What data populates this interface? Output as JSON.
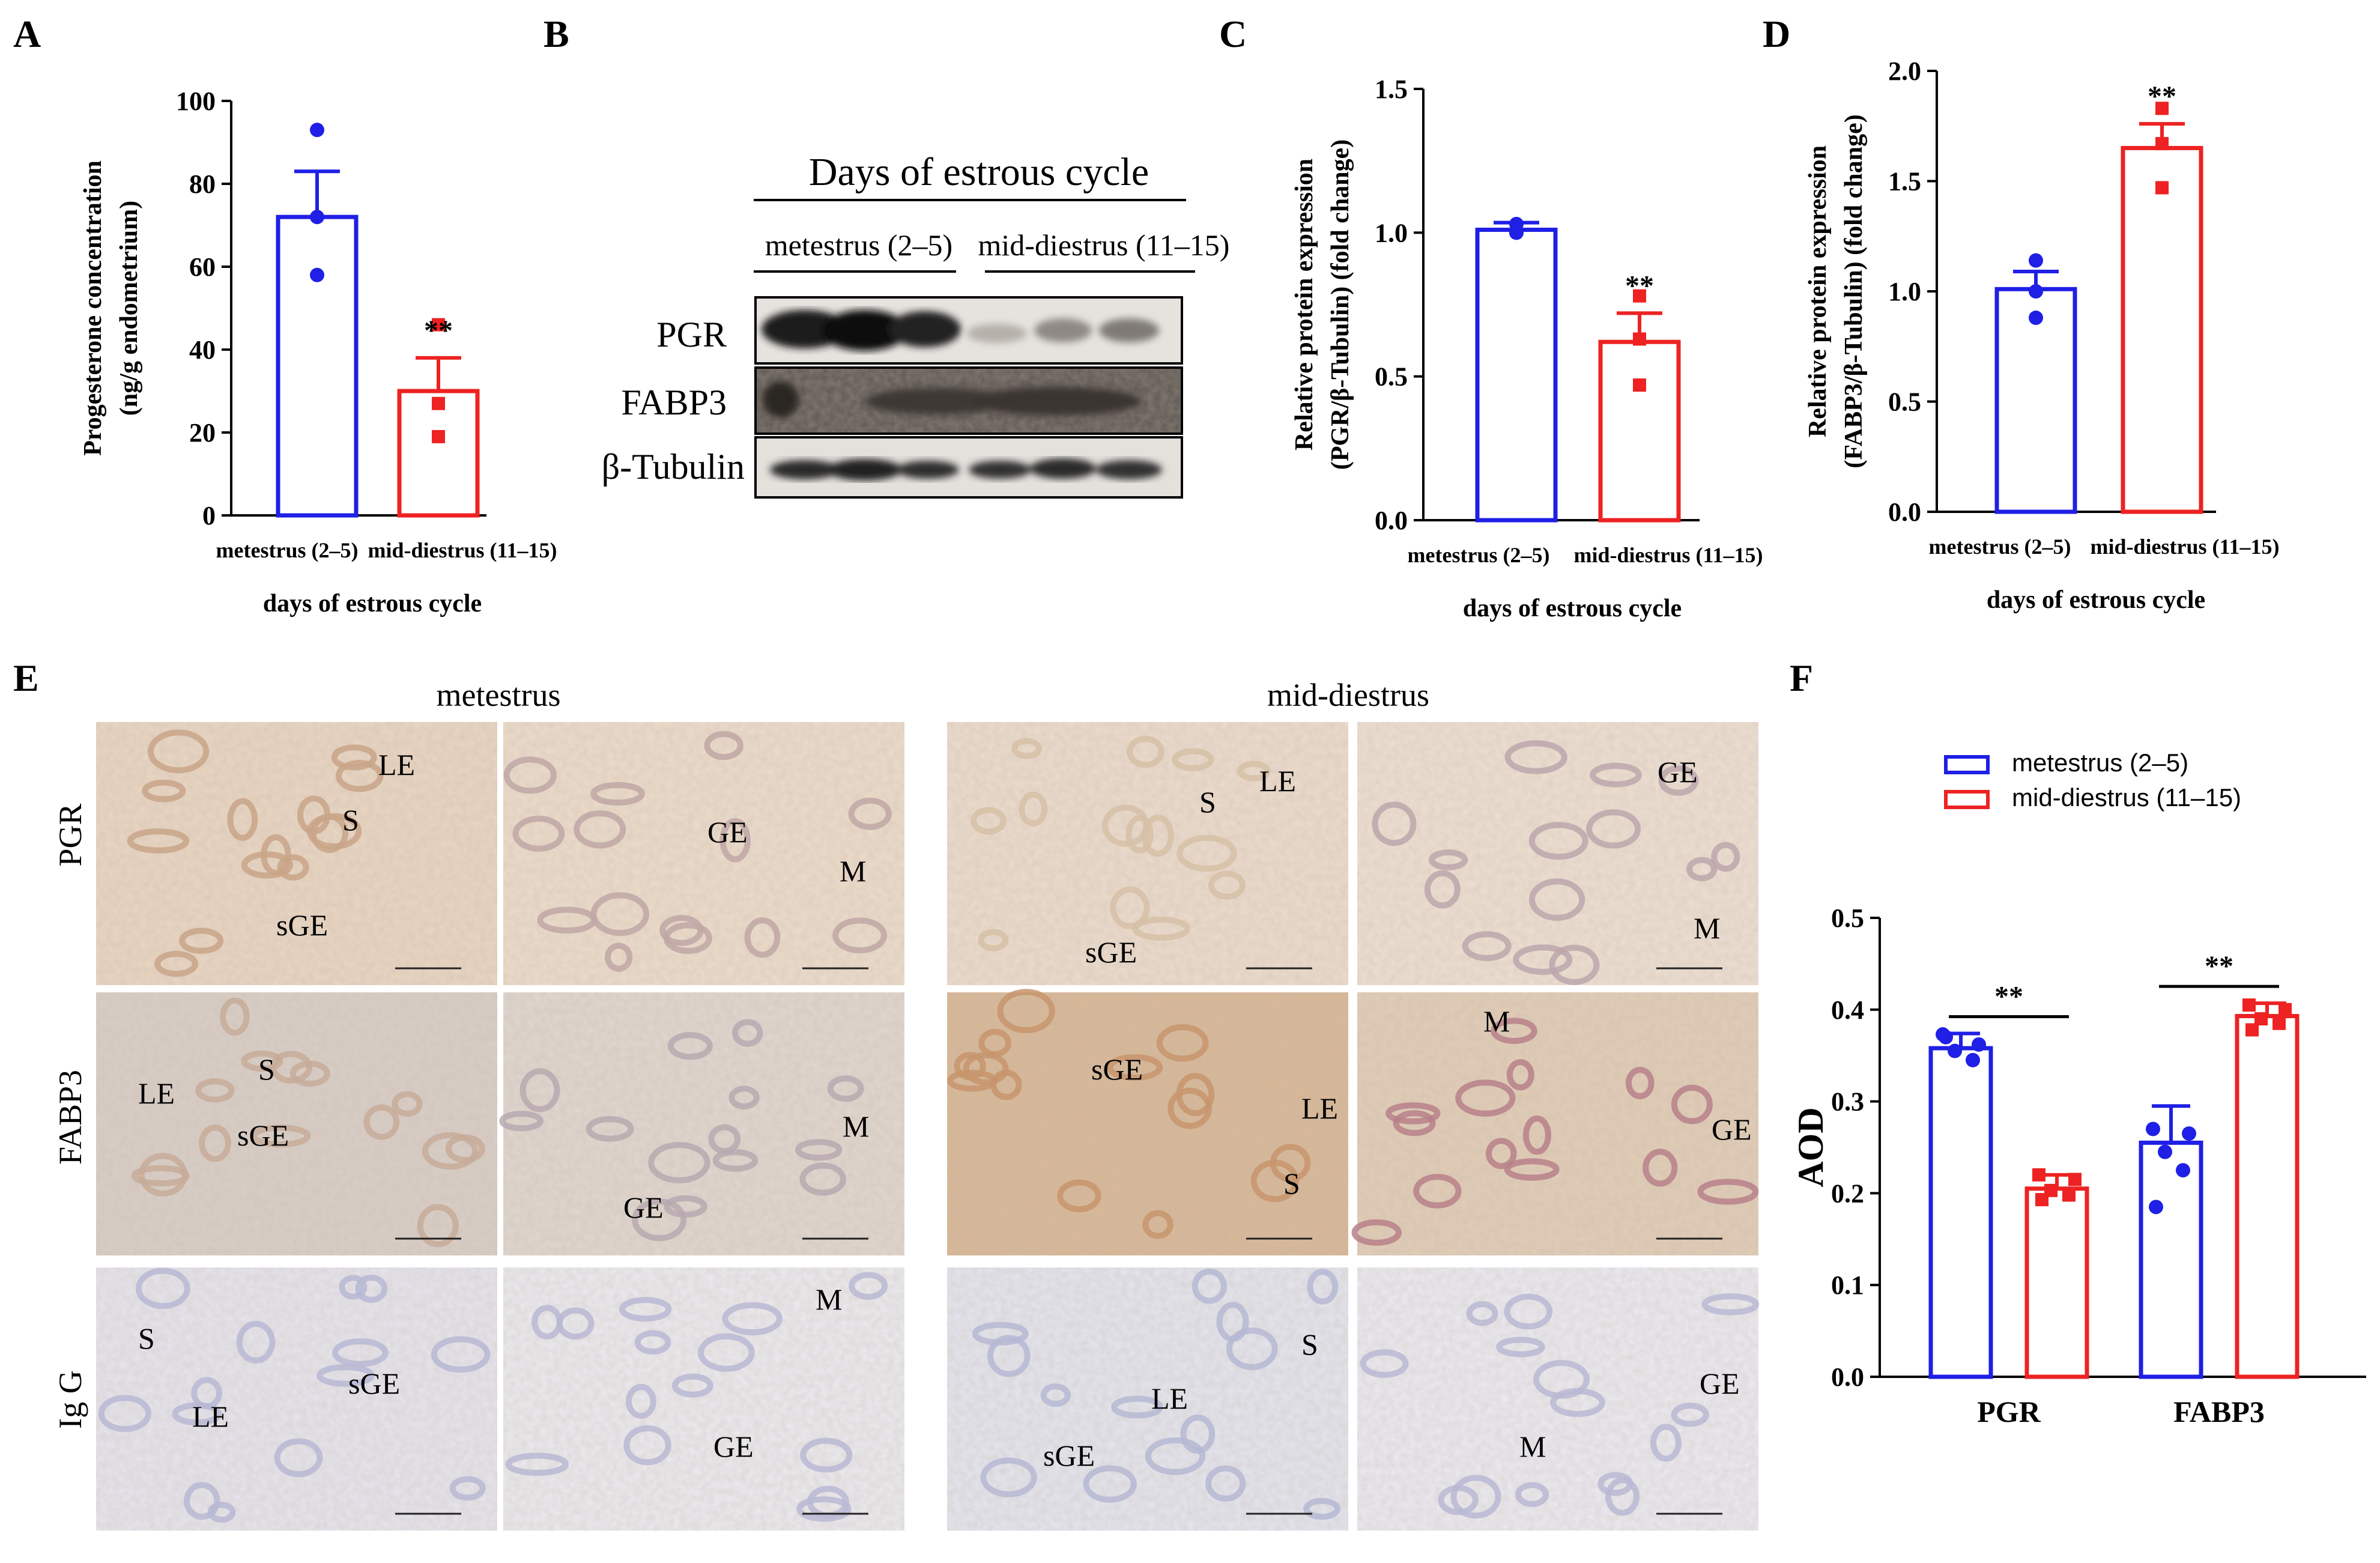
{
  "colors": {
    "blue": "#1f1fe6",
    "red": "#ee2222",
    "red_light": "#f06060",
    "black": "#000000"
  },
  "panels": {
    "A": {
      "letter": "A",
      "chart_data": {
        "type": "bar",
        "categories": [
          "metestrus (2–5)",
          "mid-diestrus (11–15)"
        ],
        "values": [
          72,
          30
        ],
        "errors": [
          11,
          8
        ],
        "points": [
          [
            93,
            72,
            58
          ],
          [
            46,
            27,
            19
          ]
        ],
        "ylim": [
          0,
          100
        ],
        "yticks": [
          "0",
          "20",
          "40",
          "60",
          "80",
          "100"
        ],
        "ylabel_line1": "Progesterone concentration",
        "ylabel_line2": "(ng/g endometrium)",
        "xlabel": "days of estrous cycle",
        "annotation": "**"
      }
    },
    "B": {
      "letter": "B",
      "title": "Days of estrous cycle",
      "group1": "metestrus (2–5)",
      "group2": "mid-diestrus (11–15)",
      "rows": [
        "PGR",
        "FABP3",
        "β-Tubulin"
      ]
    },
    "C": {
      "letter": "C",
      "chart_data": {
        "type": "bar",
        "categories": [
          "metestrus (2–5)",
          "mid-diestrus (11–15)"
        ],
        "values": [
          1.01,
          0.62
        ],
        "errors": [
          0.025,
          0.1
        ],
        "points": [
          [
            1.03,
            1.0,
            1.0
          ],
          [
            0.78,
            0.63,
            0.47
          ]
        ],
        "ylim": [
          0,
          1.5
        ],
        "yticks": [
          "0.0",
          "0.5",
          "1.0",
          "1.5"
        ],
        "ylabel_line1": "Relative protein expression",
        "ylabel_line2": "(PGR/β-Tubulin) (fold change)",
        "xlabel": "days of estrous cycle",
        "annotation": "**"
      }
    },
    "D": {
      "letter": "D",
      "chart_data": {
        "type": "bar",
        "categories": [
          "metestrus (2–5)",
          "mid-diestrus (11–15)"
        ],
        "values": [
          1.01,
          1.65
        ],
        "errors": [
          0.08,
          0.11
        ],
        "points": [
          [
            1.14,
            1.0,
            0.88
          ],
          [
            1.83,
            1.67,
            1.47
          ]
        ],
        "ylim": [
          0,
          2.0
        ],
        "yticks": [
          "0.0",
          "0.5",
          "1.0",
          "1.5",
          "2.0"
        ],
        "ylabel_line1": "Relative protein expression",
        "ylabel_line2": "(FABP3/β-Tubulin) (fold change)",
        "xlabel": "days of estrous cycle",
        "annotation": "**"
      }
    },
    "E": {
      "letter": "E",
      "col1": "metestrus",
      "col2": "mid-diestrus",
      "rows": [
        "PGR",
        "FABP3",
        "Ig G"
      ],
      "tissue": {
        "LE": "LE",
        "S": "S",
        "sGE": "sGE",
        "GE": "GE",
        "M": "M"
      }
    },
    "F": {
      "letter": "F",
      "chart_data": {
        "type": "bar",
        "categories": [
          "PGR",
          "FABP3"
        ],
        "series": [
          {
            "name": "metestrus (2–5)",
            "values": [
              0.358,
              0.255
            ],
            "errors": [
              0.016,
              0.04
            ],
            "points": [
              [
                0.373,
                0.362,
                0.355,
                0.345,
                0.37
              ],
              [
                0.27,
                0.265,
                0.245,
                0.225,
                0.185
              ]
            ]
          },
          {
            "name": "mid-diestrus (11–15)",
            "values": [
              0.205,
              0.393
            ],
            "errors": [
              0.015,
              0.014
            ],
            "points": [
              [
                0.22,
                0.215,
                0.203,
                0.198,
                0.193
              ],
              [
                0.405,
                0.4,
                0.39,
                0.385,
                0.378
              ]
            ]
          }
        ],
        "ylim": [
          0,
          0.5
        ],
        "yticks": [
          "0.0",
          "0.1",
          "0.2",
          "0.3",
          "0.4",
          "0.5"
        ],
        "ylabel": "AOD",
        "annotation": "**",
        "legend": "top"
      }
    }
  }
}
